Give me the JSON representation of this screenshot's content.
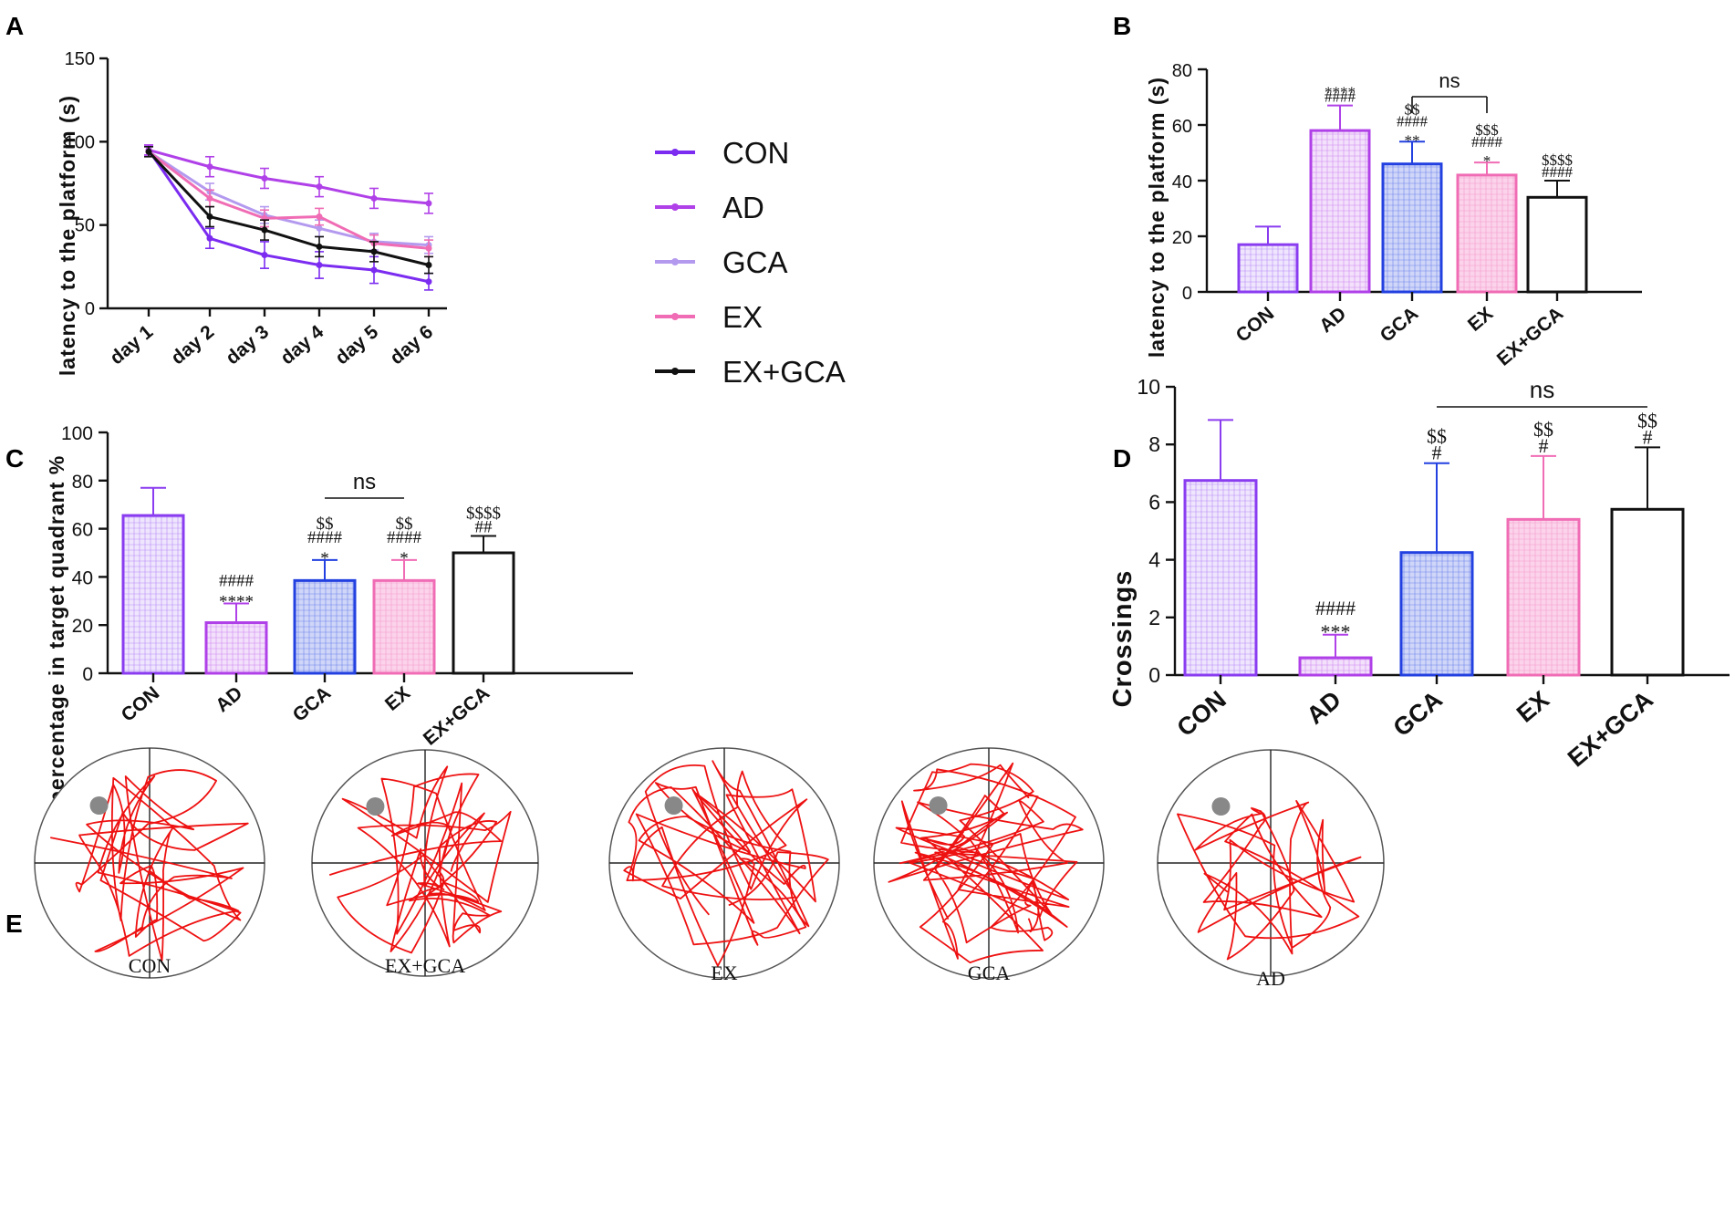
{
  "chart_data": [
    {
      "panel": "A",
      "type": "line",
      "ylabel": "latency to the platform (s)",
      "ylim": [
        0,
        150
      ],
      "yticks": [
        0,
        50,
        100,
        150
      ],
      "categories": [
        "day 1",
        "day 2",
        "day 3",
        "day 4",
        "day 5",
        "day 6"
      ],
      "series": [
        {
          "name": "CON",
          "color": "#7b2cf0",
          "values": [
            95,
            42,
            32,
            26,
            23,
            16
          ],
          "err": [
            3,
            6,
            8,
            8,
            8,
            5
          ]
        },
        {
          "name": "AD",
          "color": "#b040e8",
          "values": [
            95,
            85,
            78,
            73,
            66,
            63
          ],
          "err": [
            3,
            6,
            6,
            6,
            6,
            6
          ]
        },
        {
          "name": "GCA",
          "color": "#b49aef",
          "values": [
            94,
            70,
            56,
            48,
            40,
            38
          ],
          "err": [
            3,
            5,
            5,
            5,
            5,
            5
          ]
        },
        {
          "name": "EX",
          "color": "#f06cb4",
          "values": [
            94,
            66,
            54,
            55,
            39,
            36
          ],
          "err": [
            3,
            5,
            5,
            5,
            5,
            5
          ]
        },
        {
          "name": "EX+GCA",
          "color": "#111111",
          "values": [
            94,
            55,
            47,
            37,
            34,
            26
          ],
          "err": [
            3,
            6,
            6,
            6,
            6,
            5
          ]
        }
      ]
    },
    {
      "panel": "B",
      "type": "bar",
      "ylabel": "latency to the platform (s)",
      "ylim": [
        0,
        80
      ],
      "yticks": [
        0,
        20,
        40,
        60,
        80
      ],
      "categories": [
        "CON",
        "AD",
        "GCA",
        "EX",
        "EX+GCA"
      ],
      "values": [
        17,
        58,
        46,
        42,
        34
      ],
      "err": [
        6.5,
        9,
        8,
        4.5,
        6
      ],
      "annotations": [
        [],
        [
          "****",
          "####"
        ],
        [
          "$$",
          "####",
          "**"
        ],
        [
          "$$$",
          "####",
          "*"
        ],
        [
          "$$$$",
          "####"
        ]
      ],
      "bracket": {
        "from": "GCA",
        "to": "EX",
        "label": "ns"
      }
    },
    {
      "panel": "C",
      "type": "bar",
      "ylabel": "percentage in target quadrant %",
      "ylim": [
        0,
        100
      ],
      "yticks": [
        0,
        20,
        40,
        60,
        80,
        100
      ],
      "categories": [
        "CON",
        "AD",
        "GCA",
        "EX",
        "EX+GCA"
      ],
      "values": [
        65.5,
        21,
        38.5,
        38.5,
        50
      ],
      "err": [
        11.5,
        8,
        8.5,
        8.5,
        7
      ],
      "annotations": [
        [],
        [
          "####",
          "****"
        ],
        [
          "$$",
          "####",
          "*"
        ],
        [
          "$$",
          "####",
          "*"
        ],
        [
          "$$$$",
          "##"
        ]
      ],
      "bracket": {
        "from": "GCA",
        "to": "EX",
        "label": "ns"
      }
    },
    {
      "panel": "D",
      "type": "bar",
      "ylabel": "Crossings",
      "ylim": [
        0,
        10
      ],
      "yticks": [
        0,
        2,
        4,
        6,
        8,
        10
      ],
      "categories": [
        "CON",
        "AD",
        "GCA",
        "EX",
        "EX+GCA"
      ],
      "values": [
        6.75,
        0.6,
        4.25,
        5.4,
        5.75
      ],
      "err": [
        2.1,
        0.8,
        3.1,
        2.2,
        2.15
      ],
      "annotations": [
        [],
        [
          "####",
          "***"
        ],
        [
          "$$",
          "#"
        ],
        [
          "$$",
          "#"
        ],
        [
          "$$",
          "#"
        ]
      ],
      "bracket": {
        "from": "GCA",
        "to": "EX+GCA",
        "label": "ns"
      }
    }
  ],
  "panel_labels": [
    "A",
    "B",
    "C",
    "D",
    "E"
  ],
  "swim_paths": {
    "panel": "E",
    "mazes": [
      {
        "label": "CON",
        "path_density": 40,
        "seed": 7
      },
      {
        "label": "EX+GCA",
        "path_density": 44,
        "seed": 13
      },
      {
        "label": "EX",
        "path_density": 46,
        "seed": 29
      },
      {
        "label": "GCA",
        "path_density": 60,
        "seed": 41
      },
      {
        "label": "AD",
        "path_density": 30,
        "seed": 53
      }
    ],
    "path_color": "#ee1111",
    "platform_color": "#888888"
  }
}
